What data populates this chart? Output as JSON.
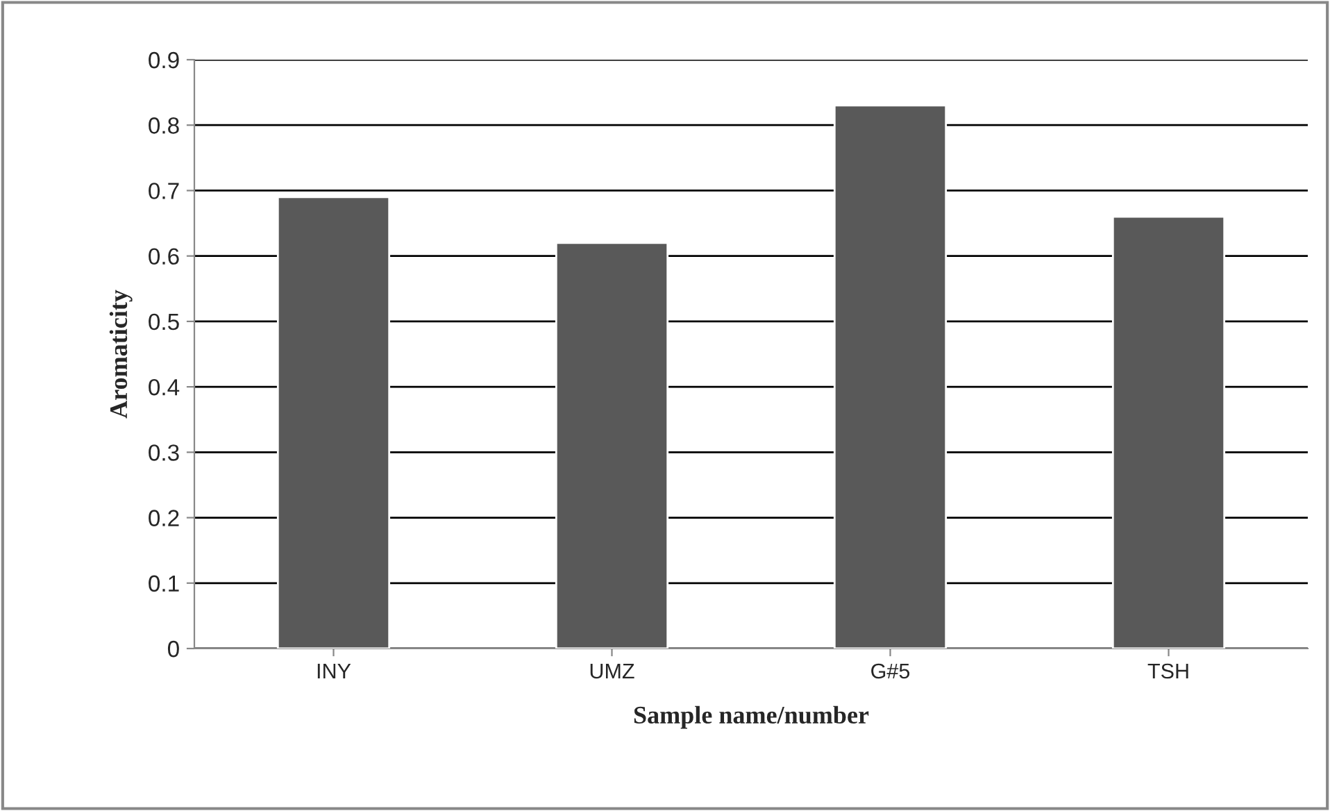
{
  "chart_data": {
    "type": "bar",
    "xlabel": "Sample name/number",
    "ylabel": "Aromaticity",
    "categories": [
      "INY",
      "UMZ",
      "G#5",
      "TSH"
    ],
    "values": [
      0.69,
      0.62,
      0.83,
      0.66
    ],
    "color": "#595959",
    "ylim": [
      0,
      0.9
    ],
    "yticks": [
      {
        "value": 0,
        "label": "0"
      },
      0.1,
      0.2,
      0.3,
      0.4,
      0.5,
      0.6,
      0.7,
      0.8,
      0.9
    ],
    "grid": "y"
  }
}
